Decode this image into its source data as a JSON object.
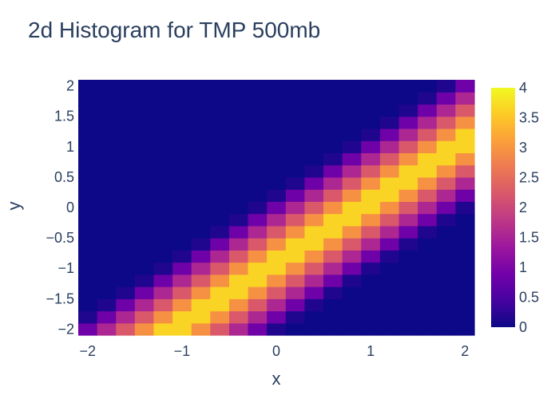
{
  "chart_data": {
    "type": "heatmap",
    "title": "2d Histogram for TMP 500mb",
    "xlabel": "x",
    "ylabel": "y",
    "xlim": [
      -2.1,
      2.1
    ],
    "ylim": [
      -2.1,
      2.1
    ],
    "x_ticks": [
      "−2",
      "−1",
      "0",
      "1",
      "2"
    ],
    "x_tick_values": [
      -2,
      -1,
      0,
      1,
      2
    ],
    "y_ticks": [
      "−2",
      "−1.5",
      "−1",
      "−0.5",
      "0",
      "0.5",
      "1",
      "1.5",
      "2"
    ],
    "y_tick_values": [
      -2,
      -1.5,
      -1,
      -0.5,
      0,
      0.5,
      1,
      1.5,
      2
    ],
    "bins": 21,
    "bin_size": 0.2,
    "value_formula": "z = clamp(4 - 0.7 * |ix - iy - 4.5|, 0, 4) on a 21x21 grid of bins (ix = x-bin index from left, iy = y-bin index from bottom)",
    "zlim": [
      0,
      4
    ],
    "colorbar_ticks": [
      "0",
      "0.5",
      "1",
      "1.5",
      "2",
      "2.5",
      "3",
      "3.5",
      "4"
    ],
    "colorbar_tick_values": [
      0,
      0.5,
      1,
      1.5,
      2,
      2.5,
      3,
      3.5,
      4
    ],
    "colorscale": "Plasma",
    "colorscale_stops": [
      "#0d0887",
      "#46039f",
      "#7201a8",
      "#9c179e",
      "#bd3786",
      "#d8576b",
      "#ed7953",
      "#fb9f3a",
      "#fdca26",
      "#f0f921"
    ],
    "grid": false,
    "legend": "colorbar-right"
  }
}
